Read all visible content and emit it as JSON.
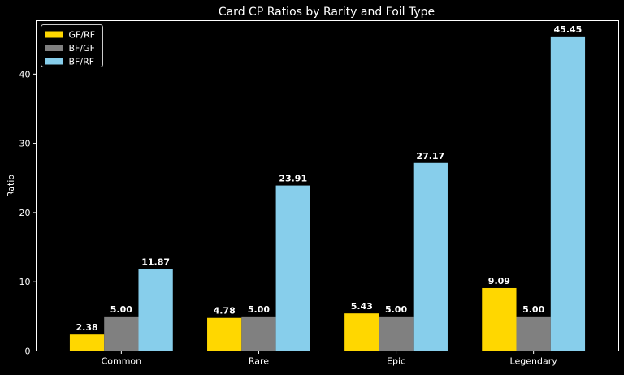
{
  "chart_data": {
    "type": "bar",
    "title": "Card CP Ratios by Rarity and Foil Type",
    "xlabel": "",
    "ylabel": "Ratio",
    "categories": [
      "Common",
      "Rare",
      "Epic",
      "Legendary"
    ],
    "series": [
      {
        "name": "GF/RF",
        "values": [
          2.38,
          4.78,
          5.43,
          9.09
        ],
        "color": "#FFD700"
      },
      {
        "name": "BF/GF",
        "values": [
          5.0,
          5.0,
          5.0,
          5.0
        ],
        "color": "#808080"
      },
      {
        "name": "BF/RF",
        "values": [
          11.87,
          23.91,
          27.17,
          45.45
        ],
        "color": "#87CEEB"
      }
    ],
    "data_labels": [
      [
        "2.38",
        "4.78",
        "5.43",
        "9.09"
      ],
      [
        "5.00",
        "5.00",
        "5.00",
        "5.00"
      ],
      [
        "11.87",
        "23.91",
        "27.17",
        "45.45"
      ]
    ],
    "ylim": [
      0,
      47.72
    ],
    "yticks": [
      0,
      10,
      20,
      30,
      40
    ],
    "ytick_labels": [
      "0",
      "10",
      "20",
      "30",
      "40"
    ],
    "grid": false,
    "legend_position": "top-left",
    "background_color": "#000000",
    "foreground_color": "#FFFFFF"
  }
}
